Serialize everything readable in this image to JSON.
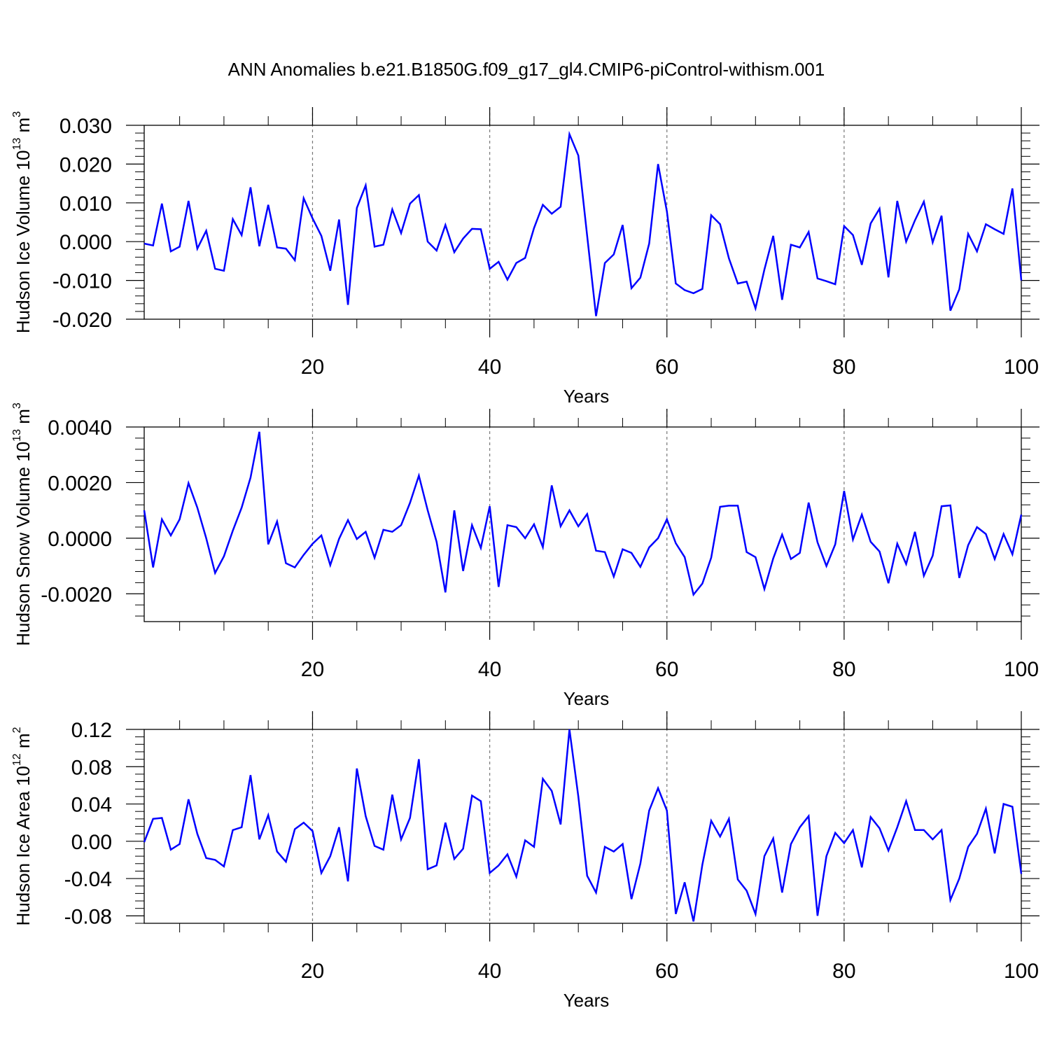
{
  "title": "ANN Anomalies b.e21.B1850G.f09_g17_gl4.CMIP6-piControl-withism.001",
  "line_color": "#0000ff",
  "chart_data": [
    {
      "type": "line",
      "ylabel": "Hudson Ice Volume",
      "yunit_base": "10",
      "yunit_exp": "13",
      "yunit_unit": "m",
      "yunit_unit_exp": "3",
      "xlabel": "Years",
      "xlim": [
        1,
        100
      ],
      "ylim": [
        -0.02,
        0.03
      ],
      "yticks": [
        -0.02,
        -0.01,
        0.0,
        0.01,
        0.02,
        0.03
      ],
      "ytick_labels": [
        "-0.020",
        "-0.010",
        "0.000",
        "0.010",
        "0.020",
        "0.030"
      ],
      "xticks": [
        20,
        40,
        60,
        80,
        100
      ],
      "xtick_labels": [
        "20",
        "40",
        "60",
        "80",
        "100"
      ],
      "grid_x": [
        20,
        40,
        60,
        80
      ],
      "x_start": 1,
      "values": [
        -0.0005,
        -0.001,
        0.0098,
        -0.0025,
        -0.0013,
        0.0105,
        -0.0018,
        0.0028,
        -0.007,
        -0.0075,
        0.0058,
        0.0017,
        0.014,
        -0.0012,
        0.0095,
        -0.0015,
        -0.0018,
        -0.0048,
        0.0112,
        0.006,
        0.0015,
        -0.0075,
        0.0057,
        -0.0163,
        0.0087,
        0.0145,
        -0.0013,
        -0.0008,
        0.0083,
        0.0022,
        0.0098,
        0.012,
        0.0,
        -0.0023,
        0.0043,
        -0.0027,
        0.0008,
        0.0033,
        0.0032,
        -0.007,
        -0.0052,
        -0.0098,
        -0.0055,
        -0.0042,
        0.0035,
        0.0095,
        0.0072,
        0.009,
        0.0277,
        0.0222,
        0.0015,
        -0.0192,
        -0.0055,
        -0.0033,
        0.0043,
        -0.012,
        -0.0093,
        -0.0005,
        0.02,
        0.0078,
        -0.0108,
        -0.0125,
        -0.0133,
        -0.0122,
        0.0068,
        0.0045,
        -0.0043,
        -0.0108,
        -0.0103,
        -0.0172,
        -0.0072,
        0.0015,
        -0.015,
        -0.0008,
        -0.0015,
        0.0025,
        -0.0095,
        -0.0102,
        -0.011,
        0.004,
        0.0017,
        -0.006,
        0.0047,
        0.0085,
        -0.0092,
        0.0105,
        0.0,
        0.0055,
        0.0103,
        -0.0002,
        0.0067,
        -0.0178,
        -0.0123,
        0.002,
        -0.0025,
        0.0045,
        0.0032,
        0.002,
        0.0137,
        -0.01
      ]
    },
    {
      "type": "line",
      "ylabel": "Hudson Snow Volume",
      "yunit_base": "10",
      "yunit_exp": "13",
      "yunit_unit": "m",
      "yunit_unit_exp": "3",
      "xlabel": "Years",
      "xlim": [
        1,
        100
      ],
      "ylim": [
        -0.003,
        0.004
      ],
      "yticks": [
        -0.002,
        0.0,
        0.002,
        0.004
      ],
      "ytick_labels": [
        "-0.0020",
        "0.0000",
        "0.0020",
        "0.0040"
      ],
      "xticks": [
        20,
        40,
        60,
        80,
        100
      ],
      "xtick_labels": [
        "20",
        "40",
        "60",
        "80",
        "100"
      ],
      "grid_x": [
        20,
        40,
        60,
        80
      ],
      "x_start": 1,
      "values": [
        0.001,
        -0.00105,
        0.00068,
        0.0001,
        0.00068,
        0.00198,
        0.0011,
        0.0,
        -0.00125,
        -0.00065,
        0.00027,
        0.0011,
        0.00218,
        0.00383,
        -0.00022,
        0.0006,
        -0.0009,
        -0.00105,
        -0.0006,
        -0.0002,
        0.0001,
        -0.00097,
        -2e-05,
        0.00065,
        -3e-05,
        0.00023,
        -0.0007,
        0.0003,
        0.00023,
        0.00047,
        0.00127,
        0.00225,
        0.001,
        -0.00013,
        -0.00195,
        0.001,
        -0.00118,
        0.00047,
        -0.00035,
        0.00115,
        -0.00175,
        0.00047,
        0.0004,
        0.0,
        0.0005,
        -0.00032,
        0.0019,
        0.00043,
        0.001,
        0.00043,
        0.00087,
        -0.00045,
        -0.0005,
        -0.00138,
        -0.0004,
        -0.00053,
        -0.00103,
        -0.00033,
        0.0,
        0.00068,
        -0.00018,
        -0.00068,
        -0.00203,
        -0.00163,
        -0.0007,
        0.00113,
        0.00117,
        0.00117,
        -0.0005,
        -0.00068,
        -0.00183,
        -0.00073,
        0.00013,
        -0.00075,
        -0.00053,
        0.00128,
        -0.00015,
        -0.001,
        -0.00022,
        0.0017,
        -5e-05,
        0.00085,
        -0.00013,
        -0.00048,
        -0.00162,
        -0.0002,
        -0.00093,
        0.00023,
        -0.00135,
        -0.00063,
        0.00115,
        0.00118,
        -0.00143,
        -0.00025,
        0.0004,
        0.00015,
        -0.00075,
        0.00015,
        -0.00058,
        0.00085
      ]
    },
    {
      "type": "line",
      "ylabel": "Hudson Ice Area",
      "yunit_base": "10",
      "yunit_exp": "12",
      "yunit_unit": "m",
      "yunit_unit_exp": "2",
      "xlabel": "Years",
      "xlim": [
        1,
        100
      ],
      "ylim": [
        -0.088,
        0.12
      ],
      "yticks": [
        -0.08,
        -0.04,
        0.0,
        0.04,
        0.08,
        0.12
      ],
      "ytick_labels": [
        "-0.08",
        "-0.04",
        "0.00",
        "0.04",
        "0.08",
        "0.12"
      ],
      "xticks": [
        20,
        40,
        60,
        80,
        100
      ],
      "xtick_labels": [
        "20",
        "40",
        "60",
        "80",
        "100"
      ],
      "grid_x": [
        20,
        40,
        60,
        80
      ],
      "x_start": 1,
      "values": [
        -0.001,
        0.024,
        0.025,
        -0.009,
        -0.003,
        0.045,
        0.008,
        -0.018,
        -0.02,
        -0.027,
        0.012,
        0.015,
        0.071,
        0.002,
        0.028,
        -0.011,
        -0.022,
        0.013,
        0.02,
        0.011,
        -0.034,
        -0.016,
        0.015,
        -0.043,
        0.078,
        0.027,
        -0.005,
        -0.009,
        0.05,
        0.002,
        0.025,
        0.088,
        -0.03,
        -0.026,
        0.02,
        -0.019,
        -0.008,
        0.049,
        0.043,
        -0.034,
        -0.026,
        -0.014,
        -0.038,
        0.001,
        -0.006,
        0.067,
        0.054,
        0.018,
        0.12,
        0.048,
        -0.037,
        -0.055,
        -0.006,
        -0.011,
        -0.003,
        -0.062,
        -0.024,
        0.033,
        0.057,
        0.033,
        -0.078,
        -0.044,
        -0.086,
        -0.025,
        0.022,
        0.005,
        0.024,
        -0.041,
        -0.053,
        -0.078,
        -0.016,
        0.003,
        -0.055,
        -0.003,
        0.015,
        0.027,
        -0.08,
        -0.016,
        0.009,
        -0.002,
        0.012,
        -0.028,
        0.026,
        0.014,
        -0.01,
        0.015,
        0.043,
        0.012,
        0.012,
        0.002,
        0.012,
        -0.063,
        -0.04,
        -0.006,
        0.008,
        0.035,
        -0.013,
        0.04,
        0.037,
        -0.035
      ]
    }
  ]
}
